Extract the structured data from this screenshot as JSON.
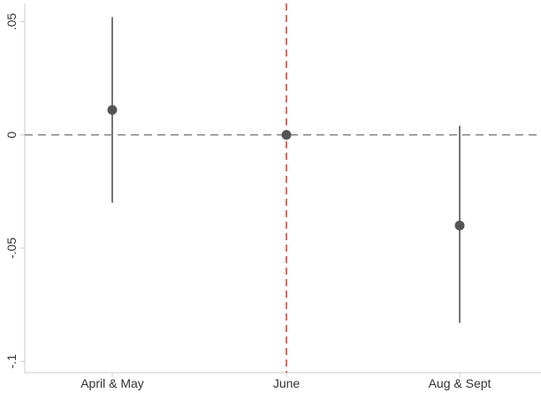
{
  "chart_data": {
    "type": "scatter",
    "subtype": "coefficient plot with confidence intervals",
    "title": "",
    "xlabel": "",
    "ylabel": "",
    "categories": [
      "April & May",
      "June",
      "Aug & Sept"
    ],
    "points": [
      {
        "category": "April & May",
        "estimate": 0.011,
        "ci_low": -0.03,
        "ci_high": 0.052
      },
      {
        "category": "June",
        "estimate": 0.0,
        "ci_low": 0.0,
        "ci_high": 0.0
      },
      {
        "category": "Aug & Sept",
        "estimate": -0.04,
        "ci_low": -0.083,
        "ci_high": 0.004
      }
    ],
    "ylim": [
      -0.105,
      0.058
    ],
    "yticks": [
      {
        "value": 0.05,
        "label": ".05"
      },
      {
        "value": 0,
        "label": "0"
      },
      {
        "value": -0.05,
        "label": "-.05"
      },
      {
        "value": -0.1,
        "label": "-.1"
      }
    ],
    "reference_lines": [
      {
        "axis": "y",
        "value": 0,
        "style": "dashed",
        "color": "#888888"
      },
      {
        "axis": "x",
        "category": "June",
        "style": "dashed",
        "color": "#d9453b"
      }
    ],
    "colors": {
      "marker": "#555555",
      "ci_line": "#777777",
      "axis": "#cccccc",
      "text": "#333333"
    },
    "grid": false,
    "legend": "none"
  }
}
